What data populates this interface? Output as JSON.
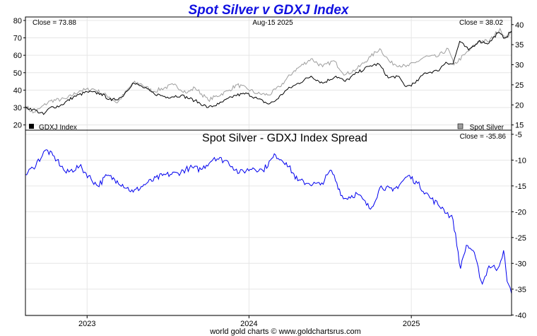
{
  "title": "Spot Silver v GDXJ Index",
  "footer": "world gold charts © www.goldchartsrus.com",
  "colors": {
    "title": "#1010e0",
    "gdxj": "#000000",
    "silver": "#9e9e9e",
    "spread": "#0000ee",
    "grid": "#e6e6e6"
  },
  "chart_data": [
    {
      "type": "line",
      "top_annotations": {
        "left": "Close = 73.88",
        "center": "Aug-15  2025",
        "right": "Close = 38.02"
      },
      "x_tick_labels": [
        "2023",
        "2024",
        "2025"
      ],
      "y_left": {
        "ticks": [
          "80",
          "70",
          "60",
          "50",
          "40",
          "30",
          "20"
        ],
        "range": [
          17,
          82
        ]
      },
      "y_right": {
        "ticks": [
          "40",
          "35",
          "30",
          "25",
          "20",
          "15"
        ],
        "range": [
          13.7,
          41.9
        ]
      },
      "legend": {
        "left": "GDXJ Index",
        "right": "Spot Silver",
        "placement": "bottom"
      },
      "x_range": [
        "2022-08-15",
        "2025-08-15"
      ],
      "series": [
        {
          "name": "GDXJ Index",
          "axis": "left",
          "points": [
            [
              "2022-08-15",
              30
            ],
            [
              "2022-09-01",
              29
            ],
            [
              "2022-09-25",
              26
            ],
            [
              "2022-10-10",
              30
            ],
            [
              "2022-11-01",
              31
            ],
            [
              "2022-12-01",
              36
            ],
            [
              "2023-01-01",
              39
            ],
            [
              "2023-02-01",
              38
            ],
            [
              "2023-02-25",
              34
            ],
            [
              "2023-03-20",
              36
            ],
            [
              "2023-04-14",
              44
            ],
            [
              "2023-05-05",
              42
            ],
            [
              "2023-06-01",
              38
            ],
            [
              "2023-07-01",
              36
            ],
            [
              "2023-08-01",
              37
            ],
            [
              "2023-09-01",
              34
            ],
            [
              "2023-10-01",
              30
            ],
            [
              "2023-10-25",
              32
            ],
            [
              "2023-12-01",
              37
            ],
            [
              "2023-12-28",
              38
            ],
            [
              "2024-01-20",
              35
            ],
            [
              "2024-02-15",
              32
            ],
            [
              "2024-03-01",
              34
            ],
            [
              "2024-03-25",
              40
            ],
            [
              "2024-04-15",
              43
            ],
            [
              "2024-05-20",
              48
            ],
            [
              "2024-06-15",
              44
            ],
            [
              "2024-07-15",
              48
            ],
            [
              "2024-08-05",
              45
            ],
            [
              "2024-09-01",
              50
            ],
            [
              "2024-10-01",
              54
            ],
            [
              "2024-10-20",
              55
            ],
            [
              "2024-11-10",
              47
            ],
            [
              "2024-12-01",
              48
            ],
            [
              "2024-12-20",
              42
            ],
            [
              "2025-01-10",
              44
            ],
            [
              "2025-02-01",
              50
            ],
            [
              "2025-03-01",
              51
            ],
            [
              "2025-03-20",
              56
            ],
            [
              "2025-04-05",
              55
            ],
            [
              "2025-04-20",
              68
            ],
            [
              "2025-05-10",
              63
            ],
            [
              "2025-06-01",
              68
            ],
            [
              "2025-06-25",
              67
            ],
            [
              "2025-07-15",
              73
            ],
            [
              "2025-07-31",
              70
            ],
            [
              "2025-08-15",
              73.88
            ]
          ]
        },
        {
          "name": "Spot Silver",
          "axis": "right",
          "points": [
            [
              "2022-08-15",
              19.8
            ],
            [
              "2022-09-01",
              18
            ],
            [
              "2022-09-15",
              19
            ],
            [
              "2022-10-10",
              21
            ],
            [
              "2022-11-15",
              21.5
            ],
            [
              "2022-12-15",
              23.5
            ],
            [
              "2023-01-15",
              24
            ],
            [
              "2023-02-20",
              22
            ],
            [
              "2023-03-10",
              20.5
            ],
            [
              "2023-04-15",
              25.5
            ],
            [
              "2023-05-01",
              25.3
            ],
            [
              "2023-05-30",
              23.3
            ],
            [
              "2023-07-15",
              25
            ],
            [
              "2023-08-15",
              23
            ],
            [
              "2023-09-01",
              24.3
            ],
            [
              "2023-10-01",
              21.2
            ],
            [
              "2023-11-15",
              23.5
            ],
            [
              "2023-12-05",
              25
            ],
            [
              "2023-12-28",
              24
            ],
            [
              "2024-01-20",
              22.8
            ],
            [
              "2024-02-15",
              22.5
            ],
            [
              "2024-03-10",
              24.5
            ],
            [
              "2024-04-12",
              28.5
            ],
            [
              "2024-05-20",
              31.5
            ],
            [
              "2024-06-15",
              29.5
            ],
            [
              "2024-07-10",
              31
            ],
            [
              "2024-08-05",
              27.5
            ],
            [
              "2024-09-01",
              29
            ],
            [
              "2024-10-01",
              32
            ],
            [
              "2024-10-22",
              34
            ],
            [
              "2024-11-15",
              30.5
            ],
            [
              "2024-12-20",
              29.5
            ],
            [
              "2025-01-10",
              30.5
            ],
            [
              "2025-02-01",
              32
            ],
            [
              "2025-03-01",
              32
            ],
            [
              "2025-03-25",
              34
            ],
            [
              "2025-04-07",
              30
            ],
            [
              "2025-05-01",
              32.5
            ],
            [
              "2025-06-05",
              36
            ],
            [
              "2025-06-25",
              35.8
            ],
            [
              "2025-07-20",
              39
            ],
            [
              "2025-07-31",
              36.5
            ],
            [
              "2025-08-15",
              38.02
            ]
          ]
        }
      ]
    },
    {
      "type": "line",
      "title": "Spot Silver  -  GDXJ Index Spread",
      "close_label": "Close = -35.86",
      "x_tick_labels": [
        "2023",
        "2024",
        "2025"
      ],
      "y_right": {
        "ticks": [
          "-5",
          "-10",
          "-15",
          "-20",
          "-25",
          "-30",
          "-35",
          "-40"
        ],
        "range": [
          -40.1,
          -4.2
        ]
      },
      "x_range": [
        "2022-08-15",
        "2025-08-15"
      ],
      "series": [
        {
          "name": "",
          "axis": "right",
          "points": [
            [
              "2022-08-15",
              -12.8
            ],
            [
              "2022-09-01",
              -11.5
            ],
            [
              "2022-10-01",
              -8
            ],
            [
              "2022-10-25",
              -10
            ],
            [
              "2022-11-15",
              -12.5
            ],
            [
              "2022-12-15",
              -11.2
            ],
            [
              "2023-01-25",
              -15
            ],
            [
              "2023-02-15",
              -13
            ],
            [
              "2023-03-10",
              -14
            ],
            [
              "2023-04-15",
              -16.2
            ],
            [
              "2023-05-15",
              -14.5
            ],
            [
              "2023-06-20",
              -13
            ],
            [
              "2023-07-25",
              -12.5
            ],
            [
              "2023-08-20",
              -11.5
            ],
            [
              "2023-09-15",
              -11.8
            ],
            [
              "2023-10-15",
              -9.5
            ],
            [
              "2023-11-15",
              -10.3
            ],
            [
              "2023-12-10",
              -12.5
            ],
            [
              "2024-01-10",
              -11.5
            ],
            [
              "2024-02-01",
              -12
            ],
            [
              "2024-03-01",
              -9
            ],
            [
              "2024-03-25",
              -10.5
            ],
            [
              "2024-04-20",
              -14
            ],
            [
              "2024-05-15",
              -14.5
            ],
            [
              "2024-06-10",
              -14.8
            ],
            [
              "2024-07-05",
              -12
            ],
            [
              "2024-08-01",
              -17.5
            ],
            [
              "2024-09-01",
              -16.5
            ],
            [
              "2024-10-01",
              -19.5
            ],
            [
              "2024-10-25",
              -15
            ],
            [
              "2024-11-20",
              -16
            ],
            [
              "2024-12-25",
              -13
            ],
            [
              "2025-01-15",
              -14.5
            ],
            [
              "2025-02-15",
              -17.5
            ],
            [
              "2025-03-15",
              -19.5
            ],
            [
              "2025-04-05",
              -21.5
            ],
            [
              "2025-04-22",
              -31
            ],
            [
              "2025-05-05",
              -26.5
            ],
            [
              "2025-05-20",
              -27.5
            ],
            [
              "2025-06-10",
              -34
            ],
            [
              "2025-06-25",
              -30.5
            ],
            [
              "2025-07-15",
              -31
            ],
            [
              "2025-07-28",
              -27.5
            ],
            [
              "2025-08-05",
              -33.5
            ],
            [
              "2025-08-15",
              -35.86
            ]
          ]
        }
      ]
    }
  ]
}
